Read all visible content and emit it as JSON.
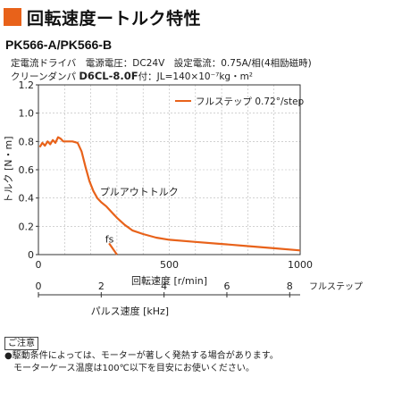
{
  "page": {
    "title": "回転速度ートルク特性",
    "model": "PK566-A/PK566-B",
    "conditions_line1": "定電流ドライバ　電源電圧：DC24V　設定電流：0.75A/相(4相励磁時)",
    "conditions_line2a": "クリーンダンパ ",
    "conditions_line2b": "D6CL-8.0F",
    "conditions_line2c": "付：JL=140×10⁻⁷kg・m²",
    "note_label": "ご注意",
    "note_line1": "●駆動条件によっては、モーターが著しく発熱する場合があります。",
    "note_line2": "モーターケース温度は100℃以下を目安にお使いください。",
    "accent_color": "#e8621a"
  },
  "chart_data": {
    "type": "line",
    "ylabel": "トルク [N・m]",
    "xlabel": "回転速度 [r/min]",
    "x2label": "パルス速度 [kHz]",
    "x2label_side": "フルステップ",
    "xlim": [
      0,
      1000
    ],
    "ylim": [
      0,
      1.2
    ],
    "x_ticks": [
      0,
      500,
      1000
    ],
    "y_ticks": [
      0,
      0.2,
      0.4,
      0.6,
      0.8,
      1.0,
      1.2
    ],
    "y_tick_labels": [
      "0",
      "0.2",
      "0.4",
      "0.6",
      "0.8",
      "1.0",
      "1.2"
    ],
    "x2_ticks": [
      0,
      2,
      4,
      6,
      8
    ],
    "x2_per_rpm": 0.008333,
    "grid": true,
    "legend": "top-right",
    "series": [
      {
        "name": "フルステップ 0.72°/step",
        "color": "#e8621a",
        "x": [
          5,
          15,
          25,
          35,
          45,
          55,
          65,
          75,
          85,
          95,
          110,
          130,
          150,
          165,
          180,
          195,
          210,
          225,
          240,
          260,
          280,
          300,
          330,
          360,
          400,
          450,
          500,
          600,
          700,
          800,
          900,
          1000
        ],
        "y": [
          0.76,
          0.79,
          0.77,
          0.8,
          0.78,
          0.81,
          0.79,
          0.83,
          0.82,
          0.8,
          0.8,
          0.8,
          0.79,
          0.73,
          0.62,
          0.52,
          0.45,
          0.4,
          0.37,
          0.34,
          0.3,
          0.26,
          0.21,
          0.17,
          0.145,
          0.12,
          0.105,
          0.09,
          0.075,
          0.06,
          0.045,
          0.03
        ]
      }
    ],
    "fs_curve": {
      "x": [
        270,
        300
      ],
      "y": [
        0.08,
        0.0
      ]
    },
    "annotations": [
      {
        "text": "プルアウトトルク",
        "x": 385,
        "y": 0.42
      },
      {
        "text": "fs",
        "x": 255,
        "y": 0.085
      }
    ]
  }
}
